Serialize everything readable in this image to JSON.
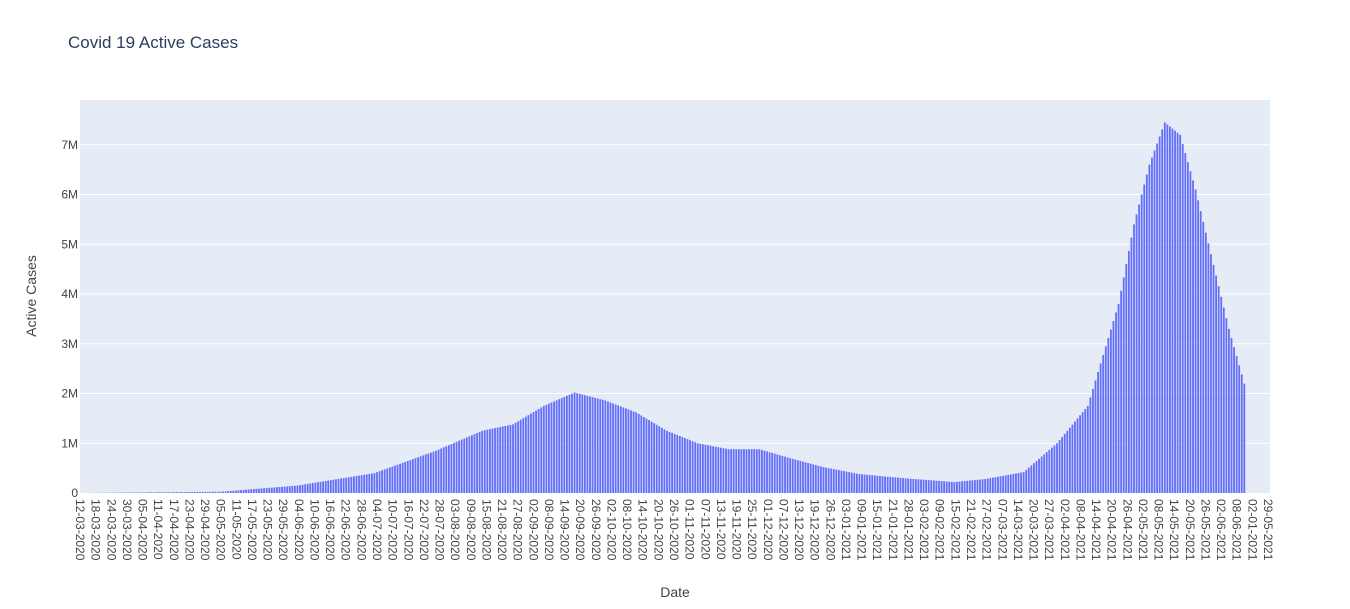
{
  "chart_data": {
    "type": "bar",
    "title": "Covid 19 Active Cases",
    "xlabel": "Date",
    "ylabel": "Active Cases",
    "ylim": [
      0,
      7900000
    ],
    "y_ticks": [
      {
        "value": 0,
        "label": "0"
      },
      {
        "value": 1000000,
        "label": "1M"
      },
      {
        "value": 2000000,
        "label": "2M"
      },
      {
        "value": 3000000,
        "label": "3M"
      },
      {
        "value": 4000000,
        "label": "4M"
      },
      {
        "value": 5000000,
        "label": "5M"
      },
      {
        "value": 6000000,
        "label": "6M"
      },
      {
        "value": 7000000,
        "label": "7M"
      }
    ],
    "x_tick_labels": [
      "12-03-2020",
      "18-03-2020",
      "24-03-2020",
      "30-03-2020",
      "05-04-2020",
      "11-04-2020",
      "17-04-2020",
      "23-04-2020",
      "29-04-2020",
      "05-05-2020",
      "11-05-2020",
      "17-05-2020",
      "23-05-2020",
      "29-05-2020",
      "04-06-2020",
      "10-06-2020",
      "16-06-2020",
      "22-06-2020",
      "28-06-2020",
      "04-07-2020",
      "10-07-2020",
      "16-07-2020",
      "22-07-2020",
      "28-07-2020",
      "03-08-2020",
      "09-08-2020",
      "15-08-2020",
      "21-08-2020",
      "27-08-2020",
      "02-09-2020",
      "08-09-2020",
      "14-09-2020",
      "20-09-2020",
      "26-09-2020",
      "02-10-2020",
      "08-10-2020",
      "14-10-2020",
      "20-10-2020",
      "26-10-2020",
      "01-11-2020",
      "07-11-2020",
      "13-11-2020",
      "19-11-2020",
      "25-11-2020",
      "01-12-2020",
      "07-12-2020",
      "13-12-2020",
      "19-12-2020",
      "26-12-2020",
      "03-01-2021",
      "09-01-2021",
      "15-01-2021",
      "21-01-2021",
      "28-01-2021",
      "03-02-2021",
      "09-02-2021",
      "15-02-2021",
      "21-02-2021",
      "27-02-2021",
      "07-03-2021",
      "14-03-2021",
      "20-03-2021",
      "27-03-2021",
      "02-04-2021",
      "08-04-2021",
      "14-04-2021",
      "20-04-2021",
      "26-04-2021",
      "02-05-2021",
      "08-05-2021",
      "14-05-2021",
      "20-05-2021",
      "26-05-2021",
      "02-06-2021",
      "08-06-2021",
      "02-01-2021",
      "29-05-2021"
    ],
    "date_range": [
      "12-03-2020",
      "08-06-2021"
    ],
    "series_shape": [
      {
        "x": "12-03-2020",
        "y": 0
      },
      {
        "x": "05-05-2020",
        "y": 25000
      },
      {
        "x": "04-06-2020",
        "y": 150000
      },
      {
        "x": "04-07-2020",
        "y": 400000
      },
      {
        "x": "28-07-2020",
        "y": 850000
      },
      {
        "x": "15-08-2020",
        "y": 1250000
      },
      {
        "x": "27-08-2020",
        "y": 1380000
      },
      {
        "x": "08-09-2020",
        "y": 1750000
      },
      {
        "x": "20-09-2020",
        "y": 2020000
      },
      {
        "x": "02-10-2020",
        "y": 1860000
      },
      {
        "x": "14-10-2020",
        "y": 1620000
      },
      {
        "x": "26-10-2020",
        "y": 1250000
      },
      {
        "x": "07-11-2020",
        "y": 1000000
      },
      {
        "x": "19-11-2020",
        "y": 880000
      },
      {
        "x": "01-12-2020",
        "y": 880000
      },
      {
        "x": "13-12-2020",
        "y": 700000
      },
      {
        "x": "26-12-2020",
        "y": 520000
      },
      {
        "x": "09-01-2021",
        "y": 380000
      },
      {
        "x": "28-01-2021",
        "y": 290000
      },
      {
        "x": "15-02-2021",
        "y": 220000
      },
      {
        "x": "27-02-2021",
        "y": 280000
      },
      {
        "x": "14-03-2021",
        "y": 420000
      },
      {
        "x": "27-03-2021",
        "y": 1000000
      },
      {
        "x": "08-04-2021",
        "y": 1750000
      },
      {
        "x": "20-04-2021",
        "y": 3800000
      },
      {
        "x": "26-04-2021",
        "y": 5400000
      },
      {
        "x": "02-05-2021",
        "y": 6600000
      },
      {
        "x": "08-05-2021",
        "y": 7450000
      },
      {
        "x": "14-05-2021",
        "y": 7200000
      },
      {
        "x": "20-05-2021",
        "y": 6100000
      },
      {
        "x": "26-05-2021",
        "y": 4800000
      },
      {
        "x": "02-06-2021",
        "y": 3300000
      },
      {
        "x": "08-06-2021",
        "y": 2200000
      }
    ],
    "grid": true,
    "colors": {
      "bar": "#636efa",
      "plot_background": "#e5ecf6",
      "grid": "#ffffff",
      "title": "#2a3f5f",
      "text": "#444444"
    }
  }
}
